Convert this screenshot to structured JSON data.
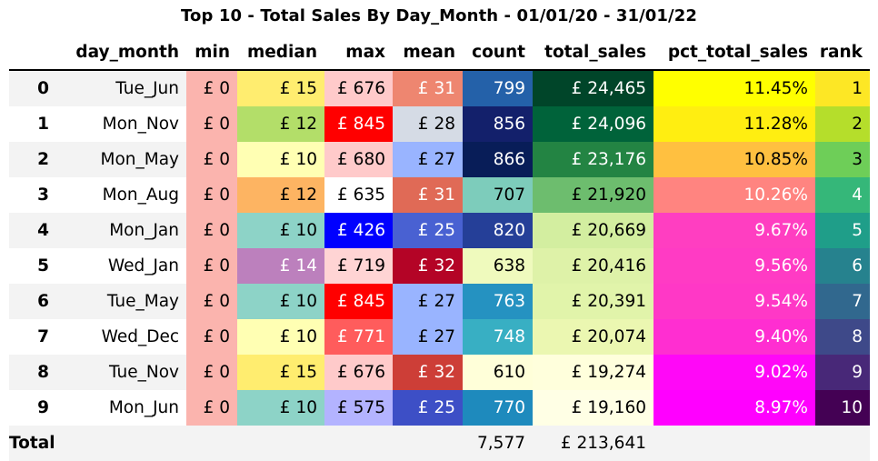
{
  "title": "Top 10 - Total Sales By Day_Month - 01/01/20 - 31/01/22",
  "chart_data": {
    "type": "table",
    "columns": [
      "",
      "day_month",
      "min",
      "median",
      "max",
      "mean",
      "count",
      "total_sales",
      "pct_total_sales",
      "rank"
    ],
    "rows": [
      {
        "index": "0",
        "day_month": "Tue_Jun",
        "min": "£ 0",
        "median": "£ 15",
        "max": "£ 676",
        "mean": "£ 31",
        "count": "799",
        "total_sales": "£ 24,465",
        "pct_total_sales": "11.45%",
        "rank": "1"
      },
      {
        "index": "1",
        "day_month": "Mon_Nov",
        "min": "£ 0",
        "median": "£ 12",
        "max": "£ 845",
        "mean": "£ 28",
        "count": "856",
        "total_sales": "£ 24,096",
        "pct_total_sales": "11.28%",
        "rank": "2"
      },
      {
        "index": "2",
        "day_month": "Mon_May",
        "min": "£ 0",
        "median": "£ 10",
        "max": "£ 680",
        "mean": "£ 27",
        "count": "866",
        "total_sales": "£ 23,176",
        "pct_total_sales": "10.85%",
        "rank": "3"
      },
      {
        "index": "3",
        "day_month": "Mon_Aug",
        "min": "£ 0",
        "median": "£ 12",
        "max": "£ 635",
        "mean": "£ 31",
        "count": "707",
        "total_sales": "£ 21,920",
        "pct_total_sales": "10.26%",
        "rank": "4"
      },
      {
        "index": "4",
        "day_month": "Mon_Jan",
        "min": "£ 0",
        "median": "£ 10",
        "max": "£ 426",
        "mean": "£ 25",
        "count": "820",
        "total_sales": "£ 20,669",
        "pct_total_sales": "9.67%",
        "rank": "5"
      },
      {
        "index": "5",
        "day_month": "Wed_Jan",
        "min": "£ 0",
        "median": "£ 14",
        "max": "£ 719",
        "mean": "£ 32",
        "count": "638",
        "total_sales": "£ 20,416",
        "pct_total_sales": "9.56%",
        "rank": "6"
      },
      {
        "index": "6",
        "day_month": "Tue_May",
        "min": "£ 0",
        "median": "£ 10",
        "max": "£ 845",
        "mean": "£ 27",
        "count": "763",
        "total_sales": "£ 20,391",
        "pct_total_sales": "9.54%",
        "rank": "7"
      },
      {
        "index": "7",
        "day_month": "Wed_Dec",
        "min": "£ 0",
        "median": "£ 10",
        "max": "£ 771",
        "mean": "£ 27",
        "count": "748",
        "total_sales": "£ 20,074",
        "pct_total_sales": "9.40%",
        "rank": "8"
      },
      {
        "index": "8",
        "day_month": "Tue_Nov",
        "min": "£ 0",
        "median": "£ 15",
        "max": "£ 676",
        "mean": "£ 32",
        "count": "610",
        "total_sales": "£ 19,274",
        "pct_total_sales": "9.02%",
        "rank": "9"
      },
      {
        "index": "9",
        "day_month": "Mon_Jun",
        "min": "£ 0",
        "median": "£ 10",
        "max": "£ 575",
        "mean": "£ 25",
        "count": "770",
        "total_sales": "£ 19,160",
        "pct_total_sales": "8.97%",
        "rank": "10"
      }
    ],
    "total": {
      "label": "Total",
      "count": "7,577",
      "total_sales": "£ 213,641"
    },
    "cell_colors": {
      "min": [
        {
          "bg": "#fbb4ae",
          "fg": "#000000"
        },
        {
          "bg": "#fbb4ae",
          "fg": "#000000"
        },
        {
          "bg": "#fbb4ae",
          "fg": "#000000"
        },
        {
          "bg": "#fbb4ae",
          "fg": "#000000"
        },
        {
          "bg": "#fbb4ae",
          "fg": "#000000"
        },
        {
          "bg": "#fbb4ae",
          "fg": "#000000"
        },
        {
          "bg": "#fbb4ae",
          "fg": "#000000"
        },
        {
          "bg": "#fbb4ae",
          "fg": "#000000"
        },
        {
          "bg": "#fbb4ae",
          "fg": "#000000"
        },
        {
          "bg": "#fbb4ae",
          "fg": "#000000"
        }
      ],
      "median": [
        {
          "bg": "#ffed6f",
          "fg": "#000000"
        },
        {
          "bg": "#b3de69",
          "fg": "#000000"
        },
        {
          "bg": "#ffffb3",
          "fg": "#000000"
        },
        {
          "bg": "#fdb462",
          "fg": "#000000"
        },
        {
          "bg": "#8dd3c7",
          "fg": "#000000"
        },
        {
          "bg": "#bc80bd",
          "fg": "#ffffff"
        },
        {
          "bg": "#8dd3c7",
          "fg": "#000000"
        },
        {
          "bg": "#ffffb3",
          "fg": "#000000"
        },
        {
          "bg": "#ffed6f",
          "fg": "#000000"
        },
        {
          "bg": "#8dd3c7",
          "fg": "#000000"
        }
      ],
      "max": [
        {
          "bg": "#ffcaca",
          "fg": "#000000"
        },
        {
          "bg": "#ff0000",
          "fg": "#ffffff"
        },
        {
          "bg": "#ffcaca",
          "fg": "#000000"
        },
        {
          "bg": "#ffffff",
          "fg": "#000000"
        },
        {
          "bg": "#0000ff",
          "fg": "#ffffff"
        },
        {
          "bg": "#ffd4d4",
          "fg": "#000000"
        },
        {
          "bg": "#ff0000",
          "fg": "#ffffff"
        },
        {
          "bg": "#ff5c5c",
          "fg": "#ffffff"
        },
        {
          "bg": "#ffcaca",
          "fg": "#000000"
        },
        {
          "bg": "#b3b3ff",
          "fg": "#000000"
        }
      ],
      "mean": [
        {
          "bg": "#ee8670",
          "fg": "#ffffff"
        },
        {
          "bg": "#d5dbe5",
          "fg": "#000000"
        },
        {
          "bg": "#99b4ff",
          "fg": "#000000"
        },
        {
          "bg": "#e06a56",
          "fg": "#ffffff"
        },
        {
          "bg": "#4961d2",
          "fg": "#ffffff"
        },
        {
          "bg": "#b40426",
          "fg": "#ffffff"
        },
        {
          "bg": "#99b4ff",
          "fg": "#000000"
        },
        {
          "bg": "#99b4ff",
          "fg": "#000000"
        },
        {
          "bg": "#cd3e37",
          "fg": "#ffffff"
        },
        {
          "bg": "#3d4fc6",
          "fg": "#ffffff"
        }
      ],
      "count": [
        {
          "bg": "#2461a9",
          "fg": "#ffffff"
        },
        {
          "bg": "#13206b",
          "fg": "#ffffff"
        },
        {
          "bg": "#081d58",
          "fg": "#ffffff"
        },
        {
          "bg": "#7dccbb",
          "fg": "#000000"
        },
        {
          "bg": "#253f98",
          "fg": "#ffffff"
        },
        {
          "bg": "#effabd",
          "fg": "#000000"
        },
        {
          "bg": "#2592c1",
          "fg": "#ffffff"
        },
        {
          "bg": "#38afc3",
          "fg": "#ffffff"
        },
        {
          "bg": "#ffffd9",
          "fg": "#000000"
        },
        {
          "bg": "#1e8abd",
          "fg": "#ffffff"
        }
      ],
      "total_sales": [
        {
          "bg": "#004529",
          "fg": "#ffffff"
        },
        {
          "bg": "#00633a",
          "fg": "#ffffff"
        },
        {
          "bg": "#238443",
          "fg": "#ffffff"
        },
        {
          "bg": "#6dbd6e",
          "fg": "#000000"
        },
        {
          "bg": "#d3eea0",
          "fg": "#000000"
        },
        {
          "bg": "#def2a8",
          "fg": "#000000"
        },
        {
          "bg": "#e1f4aa",
          "fg": "#000000"
        },
        {
          "bg": "#ebf7b1",
          "fg": "#000000"
        },
        {
          "bg": "#ffffdc",
          "fg": "#000000"
        },
        {
          "bg": "#ffffe5",
          "fg": "#000000"
        }
      ],
      "pct_total_sales": [
        {
          "bg": "#ffff00",
          "fg": "#000000"
        },
        {
          "bg": "#ffee11",
          "fg": "#000000"
        },
        {
          "bg": "#ffc040",
          "fg": "#000000"
        },
        {
          "bg": "#ff8480",
          "fg": "#ffffff"
        },
        {
          "bg": "#ff3ec1",
          "fg": "#ffffff"
        },
        {
          "bg": "#ff3bc4",
          "fg": "#ffffff"
        },
        {
          "bg": "#ff38c6",
          "fg": "#ffffff"
        },
        {
          "bg": "#ff2ed1",
          "fg": "#ffffff"
        },
        {
          "bg": "#ff08f7",
          "fg": "#ffffff"
        },
        {
          "bg": "#ff00ff",
          "fg": "#ffffff"
        }
      ],
      "rank": [
        {
          "bg": "#fde725",
          "fg": "#000000"
        },
        {
          "bg": "#b5de2b",
          "fg": "#000000"
        },
        {
          "bg": "#6ece58",
          "fg": "#000000"
        },
        {
          "bg": "#35b779",
          "fg": "#ffffff"
        },
        {
          "bg": "#1f9e89",
          "fg": "#ffffff"
        },
        {
          "bg": "#26828e",
          "fg": "#ffffff"
        },
        {
          "bg": "#31688e",
          "fg": "#ffffff"
        },
        {
          "bg": "#3e4989",
          "fg": "#ffffff"
        },
        {
          "bg": "#482878",
          "fg": "#ffffff"
        },
        {
          "bg": "#440154",
          "fg": "#ffffff"
        }
      ]
    }
  }
}
